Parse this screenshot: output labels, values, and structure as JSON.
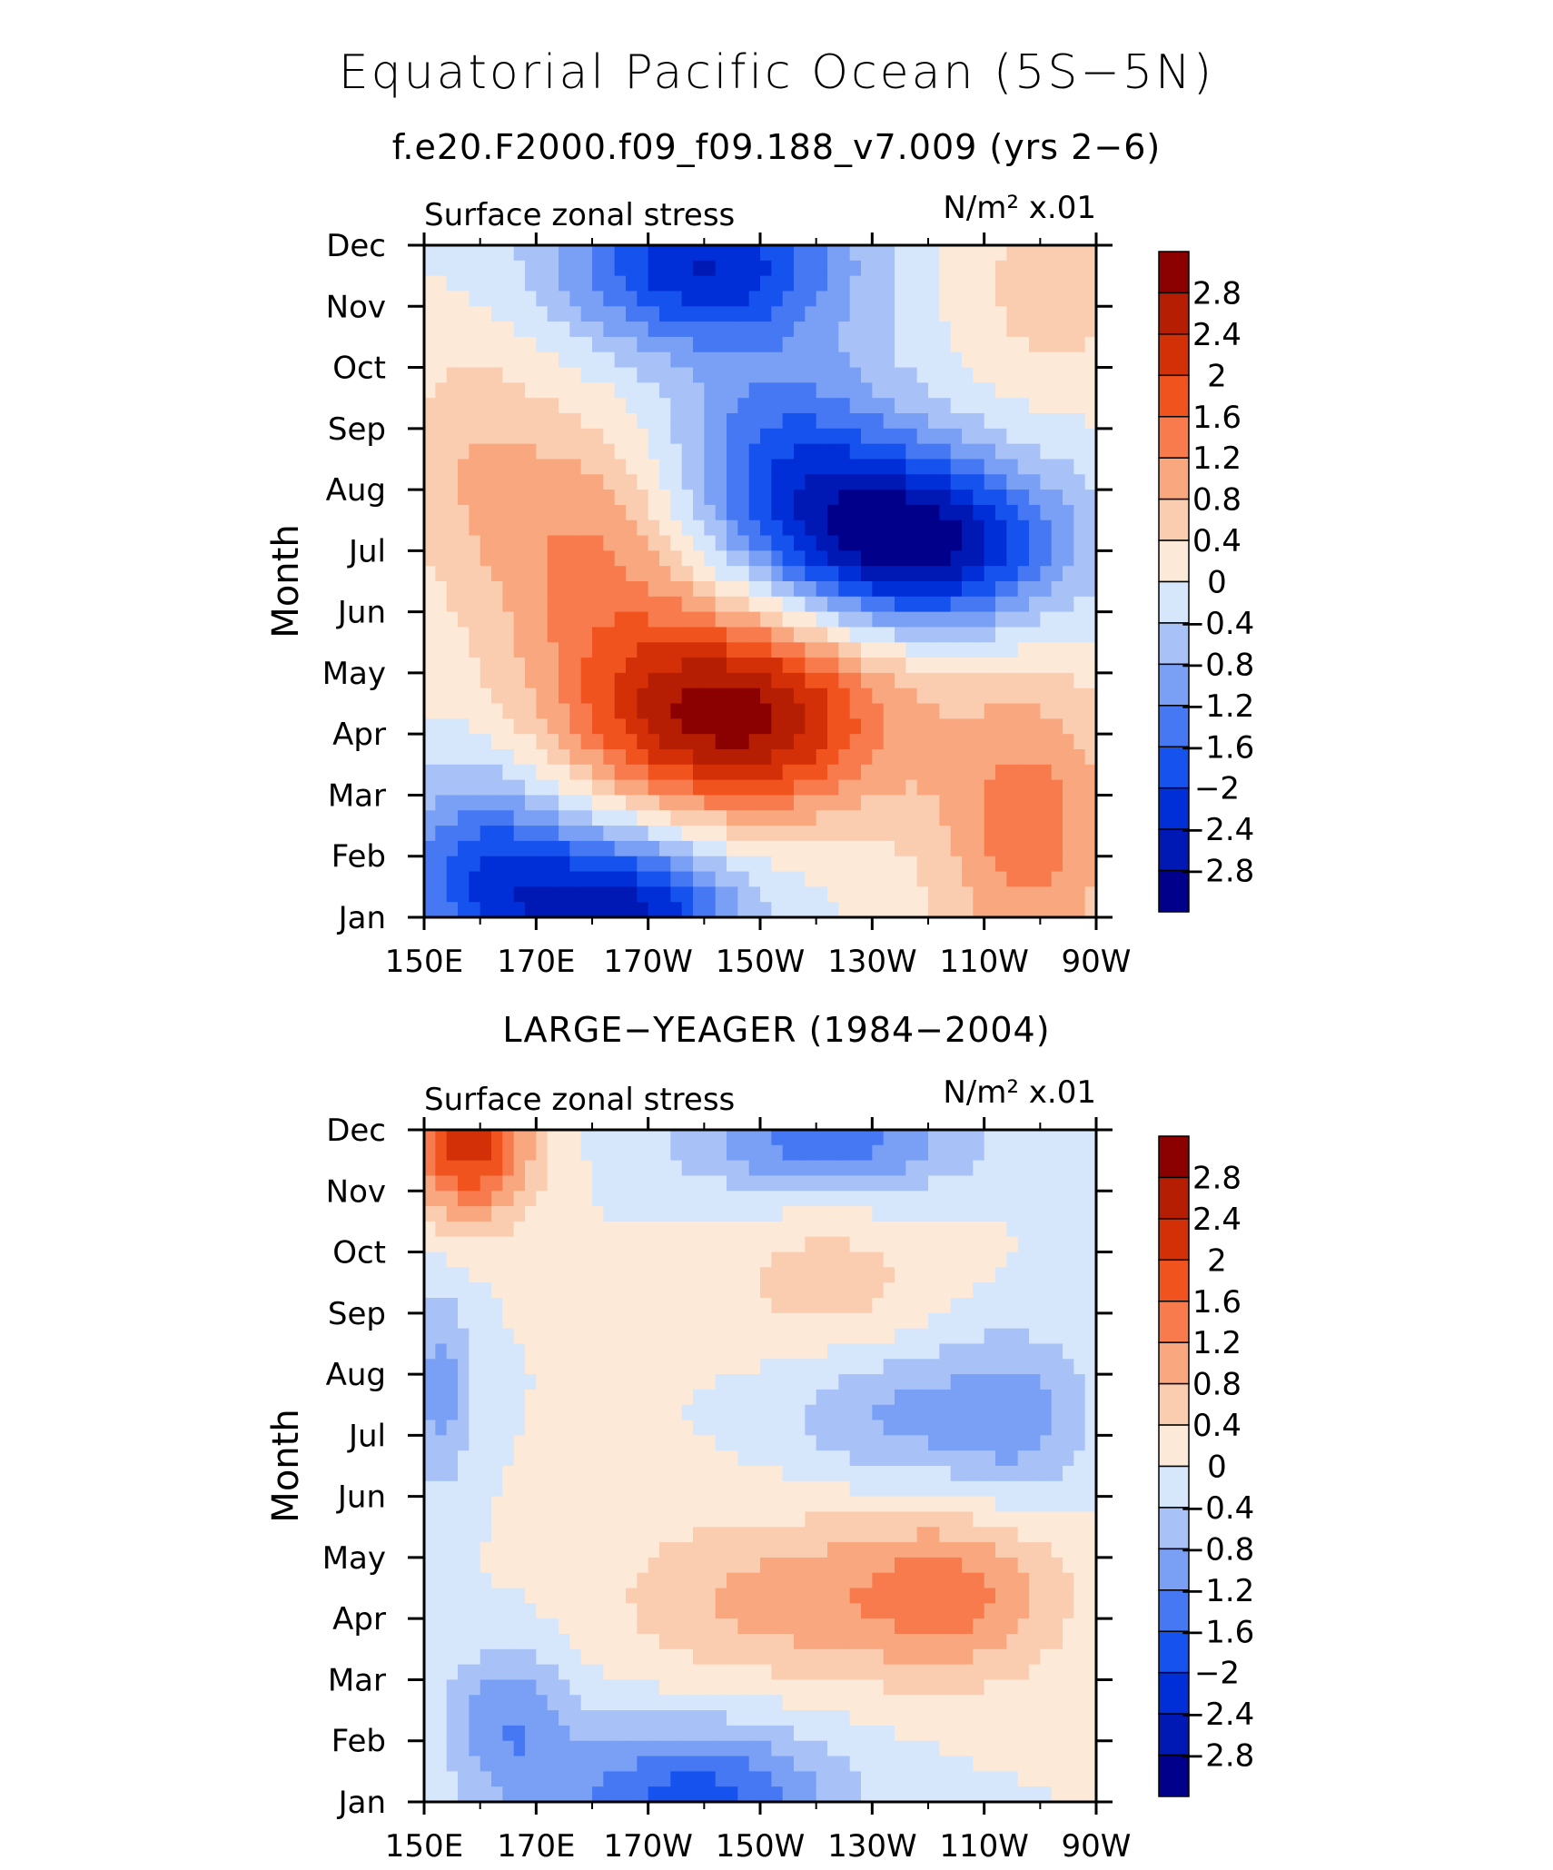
{
  "figure": {
    "title": "Equatorial Pacific Ocean (5S−5N)",
    "subtitle": "f.e20.F2000.f09_f09.188_v7.009 (yrs 2−6)",
    "second_panel_title": "LARGE−YEAGER (1984−2004)"
  },
  "chart_data": [
    {
      "type": "heatmap",
      "title": "f.e20.F2000.f09_f09.188_v7.009 (yrs 2−6)",
      "left_string": "Surface zonal stress",
      "right_string": "N/m² x.01",
      "ylabel": "Month",
      "xlabel": "",
      "x_ticks": [
        "150E",
        "170E",
        "170W",
        "150W",
        "130W",
        "110W",
        "90W"
      ],
      "x_lon": [
        150,
        170,
        190,
        210,
        230,
        250,
        270
      ],
      "y_ticks": [
        "Jan",
        "Feb",
        "Mar",
        "Apr",
        "May",
        "Jun",
        "Jul",
        "Aug",
        "Sep",
        "Oct",
        "Nov",
        "Dec"
      ],
      "colorbar_labels": [
        "2.8",
        "2.4",
        "2",
        "1.6",
        "1.2",
        "0.8",
        "0.4",
        "0",
        "−0.4",
        "−0.8",
        "−1.2",
        "−1.6",
        "−2",
        "−2.4",
        "−2.8"
      ],
      "levels": [
        -2.8,
        -2.4,
        -2,
        -1.6,
        -1.2,
        -0.8,
        -0.4,
        0,
        0.4,
        0.8,
        1.2,
        1.6,
        2,
        2.4,
        2.8
      ],
      "colors": [
        "#00008b",
        "#0018b4",
        "#002fd8",
        "#1652ee",
        "#4578f2",
        "#7aa0f5",
        "#a8c2f8",
        "#d6e6fb",
        "#fde9d8",
        "#fbcdb0",
        "#f9a77e",
        "#f87b4e",
        "#f1531f",
        "#d33008",
        "#b61e04",
        "#8b0000"
      ],
      "features": [
        {
          "lon": 205,
          "month": 4.3,
          "value": 3.0,
          "sx": 20,
          "sy": 1.2
        },
        {
          "lon": 180,
          "month": 7.0,
          "value": 1.2,
          "sx": 14,
          "sy": 1.6
        },
        {
          "lon": 158,
          "month": 8.5,
          "value": 0.6,
          "sx": 10,
          "sy": 1.5
        },
        {
          "lon": 258,
          "month": 2.4,
          "value": 1.4,
          "sx": 12,
          "sy": 1.8
        },
        {
          "lon": 262,
          "month": 11.3,
          "value": 0.6,
          "sx": 12,
          "sy": 1.2
        },
        {
          "lon": 200,
          "month": 11.7,
          "value": -2.4,
          "sx": 18,
          "sy": 1.0
        },
        {
          "lon": 238,
          "month": 7.1,
          "value": -3.0,
          "sx": 18,
          "sy": 1.0
        },
        {
          "lon": 215,
          "month": 8.5,
          "value": -1.6,
          "sx": 16,
          "sy": 1.2
        },
        {
          "lon": 185,
          "month": 1.0,
          "value": -2.6,
          "sx": 15,
          "sy": 1.0
        },
        {
          "lon": 160,
          "month": 1.8,
          "value": -1.6,
          "sx": 12,
          "sy": 1.2
        }
      ]
    },
    {
      "type": "heatmap",
      "title": "LARGE−YEAGER (1984−2004)",
      "left_string": "Surface zonal stress",
      "right_string": "N/m² x.01",
      "ylabel": "Month",
      "xlabel": "",
      "x_ticks": [
        "150E",
        "170E",
        "170W",
        "150W",
        "130W",
        "110W",
        "90W"
      ],
      "x_lon": [
        150,
        170,
        190,
        210,
        230,
        250,
        270
      ],
      "y_ticks": [
        "Jan",
        "Feb",
        "Mar",
        "Apr",
        "May",
        "Jun",
        "Jul",
        "Aug",
        "Sep",
        "Oct",
        "Nov",
        "Dec"
      ],
      "colorbar_labels": [
        "2.8",
        "2.4",
        "2",
        "1.6",
        "1.2",
        "0.8",
        "0.4",
        "0",
        "−0.4",
        "−0.8",
        "−1.2",
        "−1.6",
        "−2",
        "−2.4",
        "−2.8"
      ],
      "levels": [
        -2.8,
        -2.4,
        -2,
        -1.6,
        -1.2,
        -0.8,
        -0.4,
        0,
        0.4,
        0.8,
        1.2,
        1.6,
        2,
        2.4,
        2.8
      ],
      "colors": [
        "#00008b",
        "#0018b4",
        "#002fd8",
        "#1652ee",
        "#4578f2",
        "#7aa0f5",
        "#a8c2f8",
        "#d6e6fb",
        "#fde9d8",
        "#fbcdb0",
        "#f9a77e",
        "#f87b4e",
        "#f1531f",
        "#d33008",
        "#b61e04",
        "#8b0000"
      ],
      "features": [
        {
          "lon": 158,
          "month": 11.8,
          "value": 2.2,
          "sx": 8,
          "sy": 0.9
        },
        {
          "lon": 245,
          "month": 4.4,
          "value": 1.2,
          "sx": 14,
          "sy": 1.0
        },
        {
          "lon": 212,
          "month": 4.3,
          "value": 0.9,
          "sx": 20,
          "sy": 1.0
        },
        {
          "lon": 222,
          "month": 9.5,
          "value": 0.6,
          "sx": 14,
          "sy": 0.8
        },
        {
          "lon": 222,
          "month": 11.8,
          "value": -1.4,
          "sx": 18,
          "sy": 0.6
        },
        {
          "lon": 255,
          "month": 7.3,
          "value": -1.0,
          "sx": 10,
          "sy": 1.0
        },
        {
          "lon": 232,
          "month": 7.3,
          "value": -0.8,
          "sx": 12,
          "sy": 0.8
        },
        {
          "lon": 198,
          "month": 1.0,
          "value": -1.8,
          "sx": 18,
          "sy": 0.9
        },
        {
          "lon": 165,
          "month": 2.3,
          "value": -1.1,
          "sx": 8,
          "sy": 0.9
        },
        {
          "lon": 153,
          "month": 7.8,
          "value": -1.0,
          "sx": 4,
          "sy": 1.2
        }
      ]
    }
  ]
}
